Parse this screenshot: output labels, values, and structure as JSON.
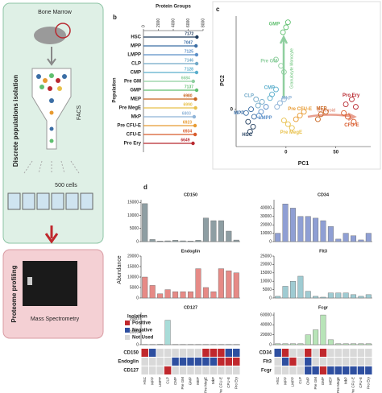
{
  "panel_a": {
    "bone_marrow": "Bone Marrow",
    "isolation": "Discrete populations isolation",
    "facs": "FACS",
    "cells": "500 cells",
    "profiling": "Proteome profiling",
    "ms": "Mass Spectrometry"
  },
  "panel_labels": [
    "b",
    "c",
    "d"
  ],
  "panel_d": {
    "ylabel": "Abundance"
  },
  "chart_data": [
    {
      "type": "lollipop",
      "title": "Protein Groups",
      "ylabel": "Population",
      "categories": [
        "HSC",
        "MPP",
        "LMPP",
        "CLP",
        "CMP",
        "Pre GM",
        "GMP",
        "MEP",
        "Pre MegE",
        "MkP",
        "Pre CFU-E",
        "CFU-E",
        "Pro Ery"
      ],
      "values": [
        7172,
        7047,
        7125,
        7146,
        7128,
        6684,
        7137,
        6980,
        6990,
        6803,
        6923,
        6934,
        6649
      ],
      "colors": [
        "#1f3b5c",
        "#3b6ea5",
        "#5b8fc8",
        "#6fa8c8",
        "#5aaecc",
        "#8fcf9f",
        "#5fbf6f",
        "#c8641e",
        "#e8c04a",
        "#8fb4d8",
        "#e89a30",
        "#d85a2a",
        "#b8282f"
      ],
      "xlim": [
        0,
        8000
      ],
      "xticks": [
        0,
        2000,
        4000,
        6000,
        8000
      ]
    },
    {
      "type": "scatter",
      "xlabel": "PC1",
      "ylabel": "PC2",
      "xlim": [
        -50,
        85
      ],
      "ylim": [
        -30,
        75
      ],
      "xticks": [
        0,
        50
      ],
      "yticks": [
        0
      ],
      "annotations": [
        "Granulocyte Monocyte",
        "Erythroid"
      ],
      "series": [
        {
          "name": "HSC",
          "color": "#1f3b5c",
          "x": [
            -36,
            -33,
            -38
          ],
          "y": [
            -18,
            -14,
            -10
          ]
        },
        {
          "name": "MPP",
          "color": "#3b6ea5",
          "x": [
            -40,
            -32,
            -35
          ],
          "y": [
            -3,
            -6,
            0
          ]
        },
        {
          "name": "LMPP",
          "color": "#5b8fc8",
          "x": [
            -25,
            -20,
            -27
          ],
          "y": [
            -2,
            2,
            -5
          ]
        },
        {
          "name": "CLP",
          "color": "#6fa8c8",
          "x": [
            -28,
            -24,
            -30
          ],
          "y": [
            3,
            6,
            8
          ]
        },
        {
          "name": "CMP",
          "color": "#5aaecc",
          "x": [
            -14,
            -10,
            -16
          ],
          "y": [
            12,
            16,
            9
          ]
        },
        {
          "name": "Pre GM",
          "color": "#8fcf9f",
          "x": [
            -5,
            -10,
            -2
          ],
          "y": [
            35,
            40,
            30
          ]
        },
        {
          "name": "GMP",
          "color": "#5fbf6f",
          "x": [
            0,
            -3,
            2
          ],
          "y": [
            66,
            62,
            70
          ]
        },
        {
          "name": "MEP",
          "color": "#c8641e",
          "x": [
            35,
            40,
            32
          ],
          "y": [
            -4,
            -2,
            -8
          ]
        },
        {
          "name": "Pre MegE",
          "color": "#e8c04a",
          "x": [
            2,
            6,
            -2
          ],
          "y": [
            -12,
            -15,
            -9
          ]
        },
        {
          "name": "MkP",
          "color": "#8fb4d8",
          "x": [
            -6,
            -2,
            -9
          ],
          "y": [
            5,
            8,
            2
          ]
        },
        {
          "name": "Pre CFU-E",
          "color": "#e89a30",
          "x": [
            14,
            18,
            10
          ],
          "y": [
            -5,
            -2,
            -8
          ]
        },
        {
          "name": "CFU-E",
          "color": "#d85a2a",
          "x": [
            62,
            68,
            58
          ],
          "y": [
            -6,
            -10,
            -3
          ]
        },
        {
          "name": "Pro Ery",
          "color": "#b8282f",
          "x": [
            60,
            66,
            70
          ],
          "y": [
            4,
            8,
            2
          ]
        }
      ]
    },
    {
      "type": "bar",
      "title": "CD150",
      "color": "#8e9ea3",
      "ylim": [
        0,
        16000
      ],
      "yticks": [
        0,
        5000,
        10000,
        15000
      ],
      "values": [
        14500,
        800,
        200,
        300,
        500,
        300,
        200,
        500,
        9000,
        8000,
        8000,
        4000,
        600
      ]
    },
    {
      "type": "bar",
      "title": "CD34",
      "color": "#8f9fd4",
      "ylim": [
        0,
        50000
      ],
      "yticks": [
        0,
        10000,
        20000,
        30000,
        40000
      ],
      "values": [
        10000,
        45000,
        40000,
        30000,
        30000,
        28000,
        25000,
        18000,
        3000,
        10000,
        7000,
        2000,
        10000
      ]
    },
    {
      "type": "bar",
      "title": "Endoglin",
      "color": "#e68a86",
      "ylim": [
        0,
        20000
      ],
      "yticks": [
        0,
        5000,
        10000,
        15000,
        20000
      ],
      "values": [
        10000,
        6000,
        2000,
        4000,
        3000,
        3000,
        3000,
        14000,
        5000,
        3000,
        14000,
        13000,
        12000
      ]
    },
    {
      "type": "bar",
      "title": "Flt3",
      "color": "#9fcbd2",
      "ylim": [
        0,
        25000
      ],
      "yticks": [
        0,
        5000,
        10000,
        15000,
        20000,
        25000
      ],
      "values": [
        1000,
        7000,
        10000,
        13000,
        4000,
        1000,
        500,
        3000,
        3000,
        3000,
        2000,
        1000,
        2000
      ]
    },
    {
      "type": "bar",
      "title": "CD127",
      "color": "#a8dcd8",
      "ylim": [
        0,
        2500
      ],
      "yticks": [
        0,
        1000,
        2000
      ],
      "values": [
        20,
        20,
        30,
        1900,
        20,
        20,
        20,
        20,
        20,
        20,
        20,
        20,
        20
      ]
    },
    {
      "type": "bar",
      "title": "Fcgr",
      "color": "#b8e4b8",
      "ylim": [
        0,
        65000
      ],
      "yticks": [
        0,
        20000,
        40000,
        60000
      ],
      "values": [
        2000,
        2000,
        2000,
        2000,
        20000,
        30000,
        60000,
        10000,
        2000,
        2000,
        2000,
        2000,
        2000
      ]
    }
  ],
  "isolation": {
    "title": "Isolation",
    "legend": [
      "Positive",
      "Negative",
      "Not Used"
    ],
    "colors": [
      "#c0282d",
      "#2e4fa0",
      "#d9d9d9"
    ],
    "panels": [
      {
        "categories": [
          "HSC",
          "MPP",
          "LMPP",
          "CLP",
          "CMP",
          "Pre GM",
          "GMP",
          "MEP",
          "Pre MegE",
          "MkP",
          "Pre CFU-E",
          "CFU-E",
          "Pro Ery"
        ],
        "rows": [
          {
            "name": "CD150",
            "states": [
              0,
              1,
              2,
              2,
              2,
              2,
              2,
              2,
              0,
              0,
              0,
              1,
              1
            ]
          },
          {
            "name": "Endoglin",
            "states": [
              2,
              2,
              2,
              2,
              1,
              1,
              1,
              1,
              1,
              1,
              0,
              0,
              0
            ]
          },
          {
            "name": "CD127",
            "states": [
              2,
              2,
              2,
              0,
              2,
              2,
              2,
              2,
              2,
              2,
              2,
              2,
              2
            ]
          }
        ]
      },
      {
        "categories": [
          "HSC",
          "MPP",
          "LMPP",
          "CLP",
          "CMP",
          "Pre GM",
          "GMP",
          "MEP",
          "Pre MegE",
          "MkP",
          "Pre CFU-E",
          "CFU-E",
          "Pro Ery"
        ],
        "rows": [
          {
            "name": "CD34",
            "states": [
              1,
              0,
              2,
              2,
              0,
              2,
              0,
              2,
              2,
              2,
              2,
              2,
              2
            ]
          },
          {
            "name": "Flt3",
            "states": [
              2,
              1,
              0,
              2,
              1,
              2,
              2,
              2,
              2,
              2,
              2,
              2,
              2
            ]
          },
          {
            "name": "Fcgr",
            "states": [
              2,
              2,
              2,
              2,
              1,
              1,
              0,
              1,
              1,
              1,
              1,
              1,
              1
            ]
          }
        ]
      }
    ]
  }
}
